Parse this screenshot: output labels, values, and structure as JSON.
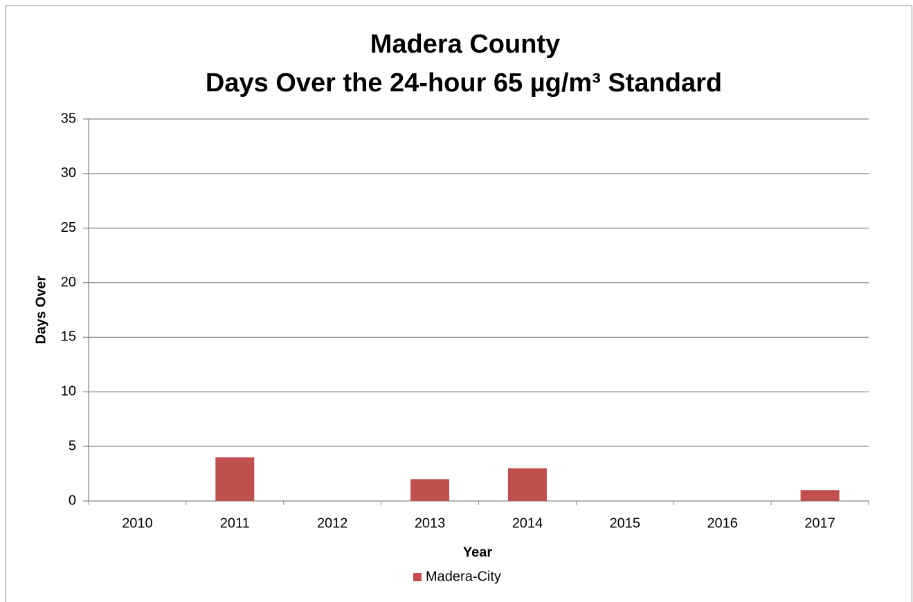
{
  "chart_data": {
    "type": "bar",
    "title": [
      "Madera County",
      "Days Over the 24-hour 65 µg/m³ Standard"
    ],
    "x_label": "Year",
    "y_label": "Days Over",
    "categories": [
      "2010",
      "2011",
      "2012",
      "2013",
      "2014",
      "2015",
      "2016",
      "2017"
    ],
    "series": [
      {
        "name": "Madera-City",
        "color": "#c0504d",
        "values": [
          0,
          4,
          0,
          2,
          3,
          0,
          0,
          1
        ]
      }
    ],
    "ylim": [
      0,
      35
    ],
    "yticks": [
      0,
      5,
      10,
      15,
      20,
      25,
      30,
      35
    ],
    "grid": true,
    "legend": "bottom"
  }
}
